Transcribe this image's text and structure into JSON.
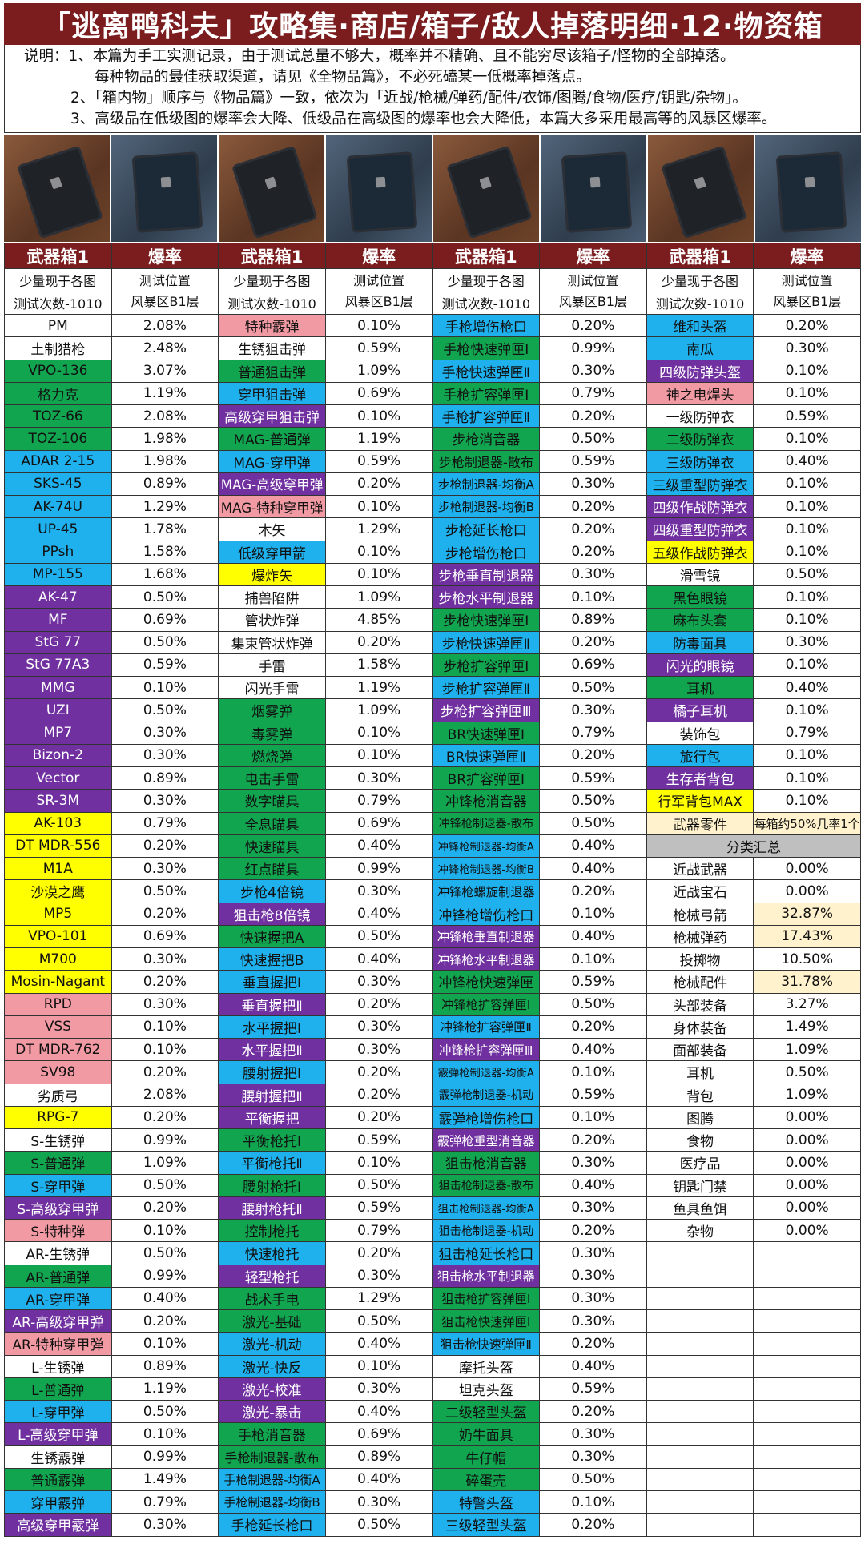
{
  "title": "「逃离鸭科夫」攻略集·商店/箱子/敌人掉落明细·12·物资箱",
  "notes": [
    "说明：1、本篇为手工实测记录，由于测试总量不够大，概率并不精确、且不能穷尽该箱子/怪物的全部掉落。",
    "每种物品的最佳获取渠道，请见《全物品篇》，不必死磕某一低概率掉落点。",
    "2、「箱内物」顺序与《物品篇》一致，依次为「近战/枪械/弹药/配件/衣饰/图腾/食物/医疗/钥匙/杂物」。",
    "3、高级品在低级图的爆率会大降、低级品在高级图的爆率也会大降低，本篇大多采用最高等的风暴区爆率。"
  ],
  "colors": {
    "header": "#7b1d1f",
    "w": "#ffffff",
    "g": "#12a550",
    "b": "#1fb0ee",
    "p": "#7030a0",
    "y": "#ffff00",
    "r": "#f29aa3",
    "c": "#fff2cc",
    "s": "#bfbfbf"
  },
  "table": {
    "header": {
      "box": "武器箱1",
      "rate": "爆率"
    },
    "subheader": {
      "box_line1": "少量现于各图",
      "box_line2": "测试次数-1010",
      "rate_line1": "测试位置",
      "rate_line2": "风暴区B1层"
    },
    "columns": [
      [
        [
          "PM",
          "2.08%",
          "w"
        ],
        [
          "土制猎枪",
          "2.48%",
          "w"
        ],
        [
          "VPO-136",
          "3.07%",
          "g"
        ],
        [
          "格力克",
          "1.19%",
          "g"
        ],
        [
          "TOZ-66",
          "2.08%",
          "g"
        ],
        [
          "TOZ-106",
          "1.98%",
          "g"
        ],
        [
          "ADAR 2-15",
          "1.98%",
          "b"
        ],
        [
          "SKS-45",
          "0.89%",
          "b"
        ],
        [
          "AK-74U",
          "1.29%",
          "b"
        ],
        [
          "UP-45",
          "1.78%",
          "b"
        ],
        [
          "PPsh",
          "1.58%",
          "b"
        ],
        [
          "MP-155",
          "1.68%",
          "b"
        ],
        [
          "AK-47",
          "0.50%",
          "p"
        ],
        [
          "MF",
          "0.69%",
          "p"
        ],
        [
          "StG 77",
          "0.50%",
          "p"
        ],
        [
          "StG 77A3",
          "0.59%",
          "p"
        ],
        [
          "MMG",
          "0.10%",
          "p"
        ],
        [
          "UZI",
          "0.50%",
          "p"
        ],
        [
          "MP7",
          "0.30%",
          "p"
        ],
        [
          "Bizon-2",
          "0.30%",
          "p"
        ],
        [
          "Vector",
          "0.89%",
          "p"
        ],
        [
          "SR-3M",
          "0.30%",
          "p"
        ],
        [
          "AK-103",
          "0.79%",
          "y"
        ],
        [
          "DT MDR-556",
          "0.20%",
          "y"
        ],
        [
          "M1A",
          "0.30%",
          "y"
        ],
        [
          "沙漠之鹰",
          "0.50%",
          "y"
        ],
        [
          "MP5",
          "0.20%",
          "y"
        ],
        [
          "VPO-101",
          "0.69%",
          "y"
        ],
        [
          "M700",
          "0.30%",
          "y"
        ],
        [
          "Mosin-Nagant",
          "0.20%",
          "y"
        ],
        [
          "RPD",
          "0.30%",
          "r"
        ],
        [
          "VSS",
          "0.10%",
          "r"
        ],
        [
          "DT MDR-762",
          "0.10%",
          "r"
        ],
        [
          "SV98",
          "0.20%",
          "r"
        ],
        [
          "劣质弓",
          "2.08%",
          "w"
        ],
        [
          "RPG-7",
          "0.20%",
          "y"
        ],
        [
          "S-生锈弹",
          "0.99%",
          "w"
        ],
        [
          "S-普通弹",
          "1.09%",
          "g"
        ],
        [
          "S-穿甲弹",
          "0.50%",
          "b"
        ],
        [
          "S-高级穿甲弹",
          "0.20%",
          "p"
        ],
        [
          "S-特种弹",
          "0.10%",
          "r"
        ],
        [
          "AR-生锈弹",
          "0.50%",
          "w"
        ],
        [
          "AR-普通弹",
          "0.99%",
          "g"
        ],
        [
          "AR-穿甲弹",
          "0.40%",
          "b"
        ],
        [
          "AR-高级穿甲弹",
          "0.20%",
          "p"
        ],
        [
          "AR-特种穿甲弹",
          "0.10%",
          "r"
        ],
        [
          "L-生锈弹",
          "0.89%",
          "w"
        ],
        [
          "L-普通弹",
          "1.19%",
          "g"
        ],
        [
          "L-穿甲弹",
          "0.50%",
          "b"
        ],
        [
          "L-高级穿甲弹",
          "0.10%",
          "p"
        ],
        [
          "生锈霰弹",
          "0.99%",
          "w"
        ],
        [
          "普通霰弹",
          "1.49%",
          "g"
        ],
        [
          "穿甲霰弹",
          "0.79%",
          "b"
        ],
        [
          "高级穿甲霰弹",
          "0.30%",
          "p"
        ]
      ],
      [
        [
          "特种霰弹",
          "0.10%",
          "r"
        ],
        [
          "生锈狙击弹",
          "0.59%",
          "w"
        ],
        [
          "普通狙击弹",
          "1.09%",
          "g"
        ],
        [
          "穿甲狙击弹",
          "0.69%",
          "b"
        ],
        [
          "高级穿甲狙击弹",
          "0.10%",
          "p"
        ],
        [
          "MAG-普通弹",
          "1.19%",
          "g"
        ],
        [
          "MAG-穿甲弹",
          "0.59%",
          "b"
        ],
        [
          "MAG-高级穿甲弹",
          "0.20%",
          "p"
        ],
        [
          "MAG-特种穿甲弹",
          "0.10%",
          "r"
        ],
        [
          "木矢",
          "1.29%",
          "w"
        ],
        [
          "低级穿甲箭",
          "0.10%",
          "b"
        ],
        [
          "爆炸矢",
          "0.10%",
          "y"
        ],
        [
          "捕兽陷阱",
          "1.09%",
          "w"
        ],
        [
          "管状炸弹",
          "4.85%",
          "w"
        ],
        [
          "集束管状炸弹",
          "0.20%",
          "w"
        ],
        [
          "手雷",
          "1.58%",
          "w"
        ],
        [
          "闪光手雷",
          "1.19%",
          "w"
        ],
        [
          "烟雾弹",
          "1.09%",
          "g"
        ],
        [
          "毒雾弹",
          "0.10%",
          "g"
        ],
        [
          "燃烧弹",
          "0.10%",
          "g"
        ],
        [
          "电击手雷",
          "0.30%",
          "g"
        ],
        [
          "数字瞄具",
          "0.79%",
          "g"
        ],
        [
          "全息瞄具",
          "0.69%",
          "g"
        ],
        [
          "快速瞄具",
          "0.40%",
          "g"
        ],
        [
          "红点瞄具",
          "0.99%",
          "g"
        ],
        [
          "步枪4倍镜",
          "0.30%",
          "b"
        ],
        [
          "狙击枪8倍镜",
          "0.40%",
          "p"
        ],
        [
          "快速握把A",
          "0.50%",
          "g"
        ],
        [
          "快速握把B",
          "0.40%",
          "b"
        ],
        [
          "垂直握把Ⅰ",
          "0.30%",
          "b"
        ],
        [
          "垂直握把Ⅱ",
          "0.20%",
          "p"
        ],
        [
          "水平握把Ⅰ",
          "0.30%",
          "b"
        ],
        [
          "水平握把Ⅱ",
          "0.30%",
          "p"
        ],
        [
          "腰射握把Ⅰ",
          "0.20%",
          "b"
        ],
        [
          "腰射握把Ⅱ",
          "0.20%",
          "p"
        ],
        [
          "平衡握把",
          "0.20%",
          "p"
        ],
        [
          "平衡枪托Ⅰ",
          "0.59%",
          "g"
        ],
        [
          "平衡枪托Ⅱ",
          "0.10%",
          "b"
        ],
        [
          "腰射枪托Ⅰ",
          "0.50%",
          "g"
        ],
        [
          "腰射枪托Ⅱ",
          "0.59%",
          "p"
        ],
        [
          "控制枪托",
          "0.79%",
          "g"
        ],
        [
          "快速枪托",
          "0.20%",
          "b"
        ],
        [
          "轻型枪托",
          "0.30%",
          "p"
        ],
        [
          "战术手电",
          "1.29%",
          "g"
        ],
        [
          "激光-基础",
          "0.50%",
          "g"
        ],
        [
          "激光-机动",
          "0.40%",
          "b"
        ],
        [
          "激光-快反",
          "0.10%",
          "b"
        ],
        [
          "激光-校准",
          "0.30%",
          "p"
        ],
        [
          "激光-暴击",
          "0.40%",
          "p"
        ],
        [
          "手枪消音器",
          "0.69%",
          "g"
        ],
        [
          "手枪制退器-散布",
          "0.89%",
          "g"
        ],
        [
          "手枪制退器-均衡A",
          "0.40%",
          "b"
        ],
        [
          "手枪制退器-均衡B",
          "0.30%",
          "b"
        ],
        [
          "手枪延长枪口",
          "0.50%",
          "b"
        ]
      ],
      [
        [
          "手枪增伤枪口",
          "0.20%",
          "b"
        ],
        [
          "手枪快速弹匣Ⅰ",
          "0.99%",
          "g"
        ],
        [
          "手枪快速弹匣Ⅱ",
          "0.30%",
          "b"
        ],
        [
          "手枪扩容弹匣Ⅰ",
          "0.79%",
          "g"
        ],
        [
          "手枪扩容弹匣Ⅱ",
          "0.20%",
          "b"
        ],
        [
          "步枪消音器",
          "0.50%",
          "g"
        ],
        [
          "步枪制退器-散布",
          "0.59%",
          "g"
        ],
        [
          "步枪制退器-均衡A",
          "0.30%",
          "b"
        ],
        [
          "步枪制退器-均衡B",
          "0.20%",
          "b"
        ],
        [
          "步枪延长枪口",
          "0.20%",
          "b"
        ],
        [
          "步枪增伤枪口",
          "0.20%",
          "b"
        ],
        [
          "步枪垂直制退器",
          "0.30%",
          "p"
        ],
        [
          "步枪水平制退器",
          "0.10%",
          "p"
        ],
        [
          "步枪快速弹匣Ⅰ",
          "0.89%",
          "g"
        ],
        [
          "步枪快速弹匣Ⅱ",
          "0.20%",
          "b"
        ],
        [
          "步枪扩容弹匣Ⅰ",
          "0.69%",
          "g"
        ],
        [
          "步枪扩容弹匣Ⅱ",
          "0.50%",
          "b"
        ],
        [
          "步枪扩容弹匣Ⅲ",
          "0.30%",
          "p"
        ],
        [
          "BR快速弹匣Ⅰ",
          "0.79%",
          "g"
        ],
        [
          "BR快速弹匣Ⅱ",
          "0.20%",
          "b"
        ],
        [
          "BR扩容弹匣Ⅰ",
          "0.59%",
          "g"
        ],
        [
          "冲锋枪消音器",
          "0.50%",
          "g"
        ],
        [
          "冲锋枪制退器-散布",
          "0.50%",
          "g"
        ],
        [
          "冲锋枪制退器-均衡A",
          "0.40%",
          "b"
        ],
        [
          "冲锋枪制退器-均衡B",
          "0.40%",
          "b"
        ],
        [
          "冲锋枪螺旋制退器",
          "0.20%",
          "b"
        ],
        [
          "冲锋枪增伤枪口",
          "0.10%",
          "b"
        ],
        [
          "冲锋枪垂直制退器",
          "0.40%",
          "p"
        ],
        [
          "冲锋枪水平制退器",
          "0.10%",
          "p"
        ],
        [
          "冲锋枪快速弹匣",
          "0.59%",
          "g"
        ],
        [
          "冲锋枪扩容弹匣Ⅰ",
          "0.50%",
          "g"
        ],
        [
          "冲锋枪扩容弹匣Ⅱ",
          "0.20%",
          "b"
        ],
        [
          "冲锋枪扩容弹匣Ⅲ",
          "0.40%",
          "p"
        ],
        [
          "霰弹枪制退器-均衡A",
          "0.10%",
          "b"
        ],
        [
          "霰弹枪制退器-机动",
          "0.59%",
          "b"
        ],
        [
          "霰弹枪增伤枪口",
          "0.10%",
          "b"
        ],
        [
          "霰弹枪重型消音器",
          "0.20%",
          "p"
        ],
        [
          "狙击枪消音器",
          "0.30%",
          "g"
        ],
        [
          "狙击枪制退器-散布",
          "0.40%",
          "g"
        ],
        [
          "狙击枪制退器-均衡A",
          "0.30%",
          "b"
        ],
        [
          "狙击枪制退器-机动",
          "0.20%",
          "b"
        ],
        [
          "狙击枪延长枪口",
          "0.30%",
          "b"
        ],
        [
          "狙击枪水平制退器",
          "0.30%",
          "p"
        ],
        [
          "狙击枪扩容弹匣Ⅰ",
          "0.30%",
          "g"
        ],
        [
          "狙击枪快速弹匣Ⅰ",
          "0.30%",
          "g"
        ],
        [
          "狙击枪快速弹匣Ⅱ",
          "0.20%",
          "b"
        ],
        [
          "摩托头盔",
          "0.40%",
          "w"
        ],
        [
          "坦克头盔",
          "0.59%",
          "w"
        ],
        [
          "二级轻型头盔",
          "0.20%",
          "g"
        ],
        [
          "奶牛面具",
          "0.30%",
          "g"
        ],
        [
          "牛仔帽",
          "0.30%",
          "g"
        ],
        [
          "碎蛋壳",
          "0.50%",
          "g"
        ],
        [
          "特警头盔",
          "0.10%",
          "b"
        ],
        [
          "三级轻型头盔",
          "0.20%",
          "b"
        ]
      ],
      [
        [
          "维和头盔",
          "0.20%",
          "b"
        ],
        [
          "南瓜",
          "0.30%",
          "b"
        ],
        [
          "四级防弹头盔",
          "0.10%",
          "p"
        ],
        [
          "神之电焊头",
          "0.10%",
          "r"
        ],
        [
          "一级防弹衣",
          "0.59%",
          "w"
        ],
        [
          "二级防弹衣",
          "0.10%",
          "g"
        ],
        [
          "三级防弹衣",
          "0.40%",
          "b"
        ],
        [
          "三级重型防弹衣",
          "0.10%",
          "b"
        ],
        [
          "四级作战防弹衣",
          "0.10%",
          "p"
        ],
        [
          "四级重型防弹衣",
          "0.10%",
          "p"
        ],
        [
          "五级作战防弹衣",
          "0.10%",
          "y"
        ],
        [
          "滑雪镜",
          "0.50%",
          "w"
        ],
        [
          "黑色眼镜",
          "0.10%",
          "g"
        ],
        [
          "麻布头套",
          "0.10%",
          "g"
        ],
        [
          "防毒面具",
          "0.30%",
          "b"
        ],
        [
          "闪光的眼镜",
          "0.10%",
          "p"
        ],
        [
          "耳机",
          "0.40%",
          "g"
        ],
        [
          "橘子耳机",
          "0.10%",
          "p"
        ],
        [
          "装饰包",
          "0.79%",
          "w"
        ],
        [
          "旅行包",
          "0.10%",
          "b"
        ],
        [
          "生存者背包",
          "0.10%",
          "p"
        ],
        [
          "行军背包MAX",
          "0.10%",
          "y"
        ],
        [
          "武器零件",
          "每箱约50%几率1个",
          "c",
          "c"
        ],
        [
          "分类汇总",
          "",
          "s",
          "span"
        ],
        [
          "近战武器",
          "0.00%",
          "w"
        ],
        [
          "近战宝石",
          "0.00%",
          "w"
        ],
        [
          "枪械弓箭",
          "32.87%",
          "w",
          "c"
        ],
        [
          "枪械弹药",
          "17.43%",
          "w",
          "c"
        ],
        [
          "投掷物",
          "10.50%",
          "w"
        ],
        [
          "枪械配件",
          "31.78%",
          "w",
          "c"
        ],
        [
          "头部装备",
          "3.27%",
          "w"
        ],
        [
          "身体装备",
          "1.49%",
          "w"
        ],
        [
          "面部装备",
          "1.09%",
          "w"
        ],
        [
          "耳机",
          "0.50%",
          "w"
        ],
        [
          "背包",
          "1.09%",
          "w"
        ],
        [
          "图腾",
          "0.00%",
          "w"
        ],
        [
          "食物",
          "0.00%",
          "w"
        ],
        [
          "医疗品",
          "0.00%",
          "w"
        ],
        [
          "钥匙门禁",
          "0.00%",
          "w"
        ],
        [
          "鱼具鱼饵",
          "0.00%",
          "w"
        ],
        [
          "杂物",
          "0.00%",
          "w"
        ],
        [
          "",
          "",
          "w"
        ],
        [
          "",
          "",
          "w"
        ],
        [
          "",
          "",
          "w"
        ],
        [
          "",
          "",
          "w"
        ],
        [
          "",
          "",
          "w"
        ],
        [
          "",
          "",
          "w"
        ],
        [
          "",
          "",
          "w"
        ],
        [
          "",
          "",
          "w"
        ],
        [
          "",
          "",
          "w"
        ],
        [
          "",
          "",
          "w"
        ],
        [
          "",
          "",
          "w"
        ],
        [
          "",
          "",
          "w"
        ],
        [
          "",
          "",
          "w"
        ]
      ]
    ]
  }
}
